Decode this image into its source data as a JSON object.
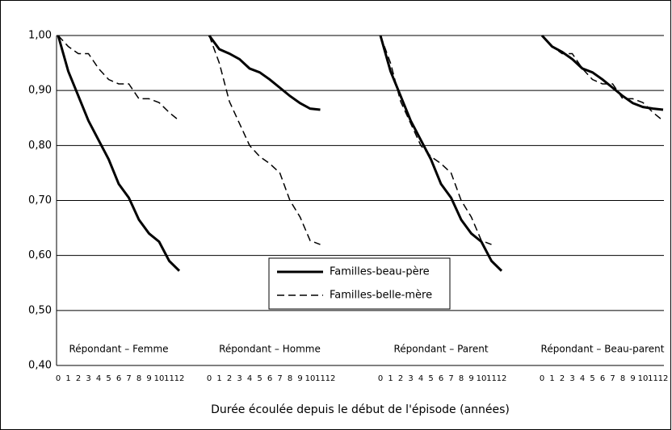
{
  "chart_data": {
    "type": "line",
    "xlabel": "Durée écoulée depuis le début de l'épisode (années)",
    "x": [
      0,
      1,
      2,
      3,
      4,
      5,
      6,
      7,
      8,
      9,
      10,
      11,
      12
    ],
    "panels": [
      "Répondant – Femme",
      "Répondant – Homme",
      "Répondant – Parent",
      "Répondant – Beau-parent"
    ],
    "ylim": [
      0.4,
      1.0
    ],
    "yticks": [
      {
        "value": 0.4,
        "label": "0,40"
      },
      {
        "value": 0.5,
        "label": "0,50"
      },
      {
        "value": 0.6,
        "label": "0,60"
      },
      {
        "value": 0.7,
        "label": "0,70"
      },
      {
        "value": 0.8,
        "label": "0,80"
      },
      {
        "value": 0.9,
        "label": "0,90"
      },
      {
        "value": 1.0,
        "label": "1,00"
      }
    ],
    "grid": true,
    "series": [
      {
        "name": "Familles-beau-père",
        "color": "#000000",
        "dash": "solid",
        "values": [
          [
            1.0,
            0.935,
            0.89,
            0.845,
            0.81,
            0.775,
            0.73,
            0.705,
            0.665,
            0.64,
            0.625,
            0.59,
            0.572
          ],
          [
            1.0,
            0.975,
            0.967,
            0.957,
            0.94,
            0.933,
            0.92,
            0.905,
            0.89,
            0.877,
            0.867,
            0.865,
            null
          ],
          [
            1.0,
            0.935,
            0.89,
            0.845,
            0.81,
            0.775,
            0.73,
            0.705,
            0.665,
            0.64,
            0.625,
            0.59,
            0.572
          ],
          [
            1.0,
            0.98,
            0.97,
            0.957,
            0.94,
            0.933,
            0.92,
            0.905,
            0.89,
            0.877,
            0.87,
            0.867,
            0.865
          ]
        ]
      },
      {
        "name": "Familles-belle-mère",
        "color": "#000000",
        "dash": "dashed",
        "values": [
          [
            1.0,
            0.98,
            0.967,
            0.967,
            0.94,
            0.92,
            0.912,
            0.912,
            0.885,
            0.885,
            0.878,
            0.86,
            0.845
          ],
          [
            1.0,
            0.95,
            0.88,
            0.84,
            0.8,
            0.78,
            0.767,
            0.75,
            0.7,
            0.67,
            0.627,
            0.62,
            null
          ],
          [
            1.0,
            0.95,
            0.88,
            0.84,
            0.8,
            0.78,
            0.767,
            0.75,
            0.7,
            0.67,
            0.627,
            0.62,
            null
          ],
          [
            1.0,
            0.98,
            0.967,
            0.967,
            0.94,
            0.92,
            0.912,
            0.912,
            0.885,
            0.885,
            0.878,
            0.86,
            0.845
          ]
        ]
      }
    ]
  }
}
